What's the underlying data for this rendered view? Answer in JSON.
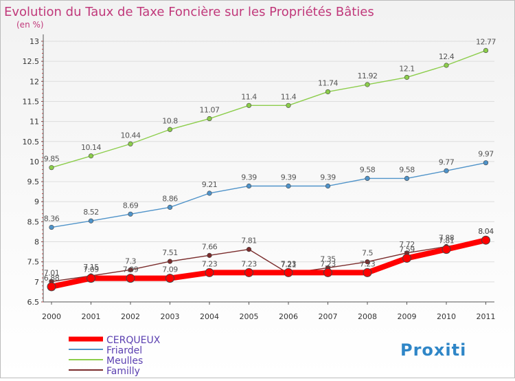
{
  "title": "Evolution du Taux de Taxe Foncière sur les Propriétés Bâties",
  "unit": "(en %)",
  "brand": "Proxiti",
  "colors": {
    "title": "#c0387a",
    "legend_text": "#5a3fb0",
    "axis": "#333333",
    "grid": "#dddddd"
  },
  "chart_data": {
    "type": "line",
    "title": "Evolution du Taux de Taxe Foncière sur les Propriétés Bâties",
    "ylabel": "(en %)",
    "ylim": [
      6.5,
      13
    ],
    "yticks": [
      6.5,
      7,
      7.5,
      8,
      8.5,
      9,
      9.5,
      10,
      10.5,
      11,
      11.5,
      12,
      12.5,
      13
    ],
    "ytick_labels": [
      "6.5",
      "7",
      "7.5",
      "8",
      "8.5",
      "9",
      "9.5",
      "10",
      "10.5",
      "11",
      "11.5",
      "12",
      "12.5",
      "13"
    ],
    "categories": [
      "2000",
      "2001",
      "2002",
      "2003",
      "2004",
      "2005",
      "2006",
      "2007",
      "2008",
      "2009",
      "2010",
      "2011"
    ],
    "legend_position": "bottom-left",
    "series": [
      {
        "name": "CERQUEUX",
        "color": "#ff0000",
        "values": [
          6.88,
          7.09,
          7.09,
          7.09,
          7.23,
          7.23,
          7.23,
          7.23,
          7.23,
          7.59,
          7.81,
          8.04
        ],
        "labels": [
          "6.88",
          "7.09",
          "7.09",
          "7.09",
          "7.23",
          "7.23",
          "7.23",
          "7.23",
          "7.23",
          "7.59",
          "7.81",
          "8.04"
        ]
      },
      {
        "name": "Friardel",
        "color": "#4f93c9",
        "values": [
          8.36,
          8.52,
          8.69,
          8.86,
          9.21,
          9.39,
          9.39,
          9.39,
          9.58,
          9.58,
          9.77,
          9.97
        ],
        "labels": [
          "8.36",
          "8.52",
          "8.69",
          "8.86",
          "9.21",
          "9.39",
          "9.39",
          "9.39",
          "9.58",
          "9.58",
          "9.77",
          "9.97"
        ]
      },
      {
        "name": "Meulles",
        "color": "#8ccd4b",
        "values": [
          9.85,
          10.14,
          10.44,
          10.8,
          11.07,
          11.4,
          11.4,
          11.74,
          11.92,
          12.1,
          12.4,
          12.77
        ],
        "labels": [
          "9.85",
          "10.14",
          "10.44",
          "10.8",
          "11.07",
          "11.4",
          "11.4",
          "11.74",
          "11.92",
          "12.1",
          "12.4",
          "12.77"
        ]
      },
      {
        "name": "Familly",
        "color": "#7a2c2c",
        "values": [
          7.01,
          7.15,
          7.3,
          7.51,
          7.66,
          7.81,
          7.21,
          7.35,
          7.5,
          7.72,
          7.88,
          8.04
        ],
        "labels": [
          "7.01",
          "7.15",
          "7.3",
          "7.51",
          "7.66",
          "7.81",
          "7.21",
          "7.35",
          "7.5",
          "7.72",
          "7.88",
          "8.04"
        ]
      }
    ]
  }
}
